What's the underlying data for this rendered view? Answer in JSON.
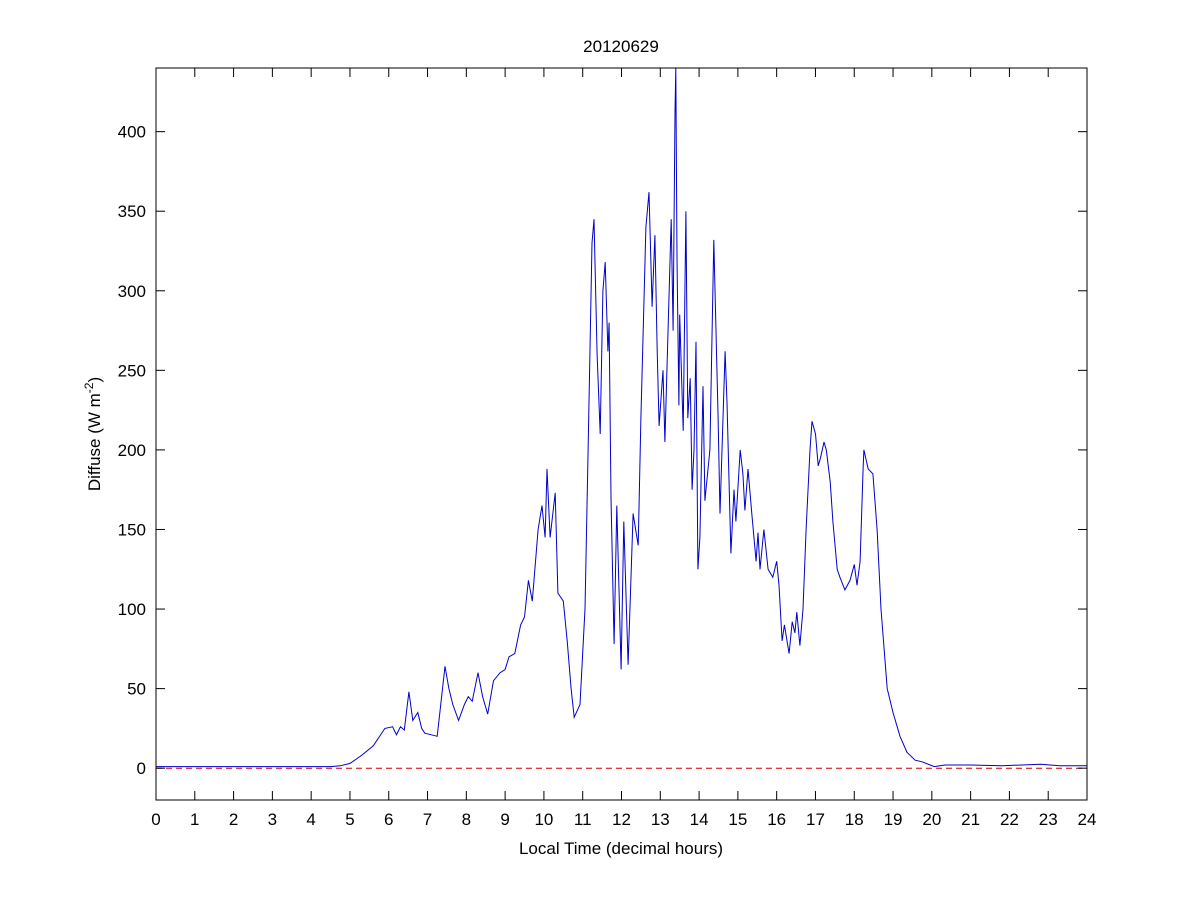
{
  "chart_data": {
    "type": "line",
    "title": "20120629",
    "xlabel": "Local Time (decimal hours)",
    "ylabel": {
      "text": "Diffuse (W m",
      "superscript": "-2",
      "suffix": ")"
    },
    "xlim": [
      0,
      24
    ],
    "ylim": [
      -20,
      440
    ],
    "xticks": [
      0,
      1,
      2,
      3,
      4,
      5,
      6,
      7,
      8,
      9,
      10,
      11,
      12,
      13,
      14,
      15,
      16,
      17,
      18,
      19,
      20,
      21,
      22,
      23,
      24
    ],
    "yticks": [
      0,
      50,
      100,
      150,
      200,
      250,
      300,
      350,
      400
    ],
    "grid": false,
    "series": [
      {
        "color": "#0000cc",
        "style": "solid",
        "x": [
          0,
          4.5,
          4.75,
          5.0,
          5.3,
          5.6,
          5.9,
          6.1,
          6.2,
          6.3,
          6.4,
          6.52,
          6.62,
          6.75,
          6.85,
          6.93,
          7.1,
          7.25,
          7.45,
          7.55,
          7.65,
          7.8,
          7.95,
          8.05,
          8.15,
          8.3,
          8.42,
          8.55,
          8.7,
          8.87,
          9.0,
          9.1,
          9.25,
          9.4,
          9.5,
          9.6,
          9.7,
          9.85,
          9.95,
          10.03,
          10.08,
          10.16,
          10.29,
          10.36,
          10.5,
          10.6,
          10.7,
          10.78,
          10.93,
          11.06,
          11.14,
          11.24,
          11.29,
          11.37,
          11.45,
          11.52,
          11.58,
          11.65,
          11.68,
          11.73,
          11.81,
          11.88,
          11.99,
          12.06,
          12.17,
          12.3,
          12.43,
          12.5,
          12.63,
          12.71,
          12.79,
          12.86,
          12.92,
          12.97,
          13.07,
          13.12,
          13.28,
          13.33,
          13.38,
          13.4,
          13.43,
          13.48,
          13.5,
          13.59,
          13.66,
          13.71,
          13.77,
          13.82,
          13.87,
          13.92,
          13.97,
          14.02,
          14.1,
          14.15,
          14.28,
          14.38,
          14.49,
          14.54,
          14.67,
          14.72,
          14.82,
          14.9,
          14.95,
          15.06,
          15.13,
          15.18,
          15.26,
          15.36,
          15.47,
          15.52,
          15.57,
          15.67,
          15.78,
          15.9,
          16.0,
          16.06,
          16.14,
          16.2,
          16.32,
          16.4,
          16.47,
          16.52,
          16.6,
          16.68,
          16.76,
          16.86,
          16.91,
          17.0,
          17.07,
          17.13,
          17.22,
          17.28,
          17.38,
          17.45,
          17.56,
          17.63,
          17.76,
          17.89,
          18.0,
          18.07,
          18.15,
          18.23,
          18.25,
          18.36,
          18.48,
          18.59,
          18.69,
          18.85,
          19.0,
          19.18,
          19.36,
          19.57,
          19.75,
          20.06,
          20.34,
          21.0,
          21.8,
          22.8,
          23.3,
          24
        ],
        "y": [
          1,
          1,
          1.5,
          3,
          8,
          14,
          25,
          26,
          21,
          26,
          24,
          48,
          30,
          35,
          25,
          22,
          21,
          20,
          64,
          50,
          40,
          30,
          40,
          45,
          42,
          60,
          45,
          34,
          55,
          60,
          62,
          70,
          72,
          90,
          95,
          118,
          105,
          150,
          165,
          145,
          188,
          145,
          173,
          110,
          105,
          80,
          50,
          32,
          40,
          100,
          200,
          330,
          345,
          260,
          210,
          300,
          318,
          262,
          280,
          170,
          78,
          165,
          62,
          155,
          65,
          160,
          140,
          220,
          340,
          362,
          290,
          335,
          262,
          215,
          250,
          205,
          345,
          275,
          412,
          440,
          320,
          228,
          285,
          212,
          350,
          220,
          245,
          175,
          200,
          268,
          125,
          145,
          240,
          168,
          200,
          332,
          220,
          160,
          262,
          230,
          135,
          175,
          155,
          200,
          185,
          162,
          188,
          160,
          130,
          148,
          125,
          150,
          125,
          120,
          130,
          115,
          80,
          90,
          72,
          92,
          85,
          98,
          77,
          100,
          150,
          200,
          218,
          210,
          190,
          195,
          205,
          200,
          180,
          155,
          125,
          120,
          112,
          118,
          128,
          115,
          130,
          190,
          200,
          188,
          185,
          150,
          100,
          50,
          35,
          20,
          10,
          5,
          4,
          1,
          2,
          2,
          1.5,
          2.5,
          1.5,
          1.5
        ]
      },
      {
        "color": "#cc0000",
        "style": "dashed",
        "x": [
          0,
          24
        ],
        "y": [
          0,
          0
        ]
      }
    ]
  }
}
